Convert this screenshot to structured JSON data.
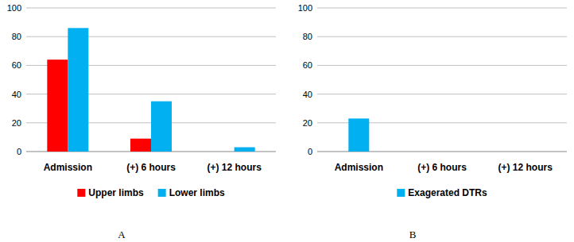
{
  "chart_data": [
    {
      "type": "bar",
      "title": "A",
      "categories": [
        "Admission",
        "(+) 6 hours",
        "(+) 12 hours"
      ],
      "series": [
        {
          "name": "Upper limbs",
          "color": "#ff0000",
          "values": [
            64,
            9,
            0
          ]
        },
        {
          "name": "Lower limbs",
          "color": "#00b0f0",
          "values": [
            86,
            35,
            3
          ]
        }
      ],
      "ylim": [
        0,
        100
      ],
      "yticks": [
        0,
        20,
        40,
        60,
        80,
        100
      ],
      "grid": true,
      "legend": "bottom"
    },
    {
      "type": "bar",
      "title": "B",
      "categories": [
        "Admission",
        "(+) 6 hours",
        "(+) 12 hours"
      ],
      "series": [
        {
          "name": "Exagerated DTRs",
          "color": "#00b0f0",
          "values": [
            23,
            0,
            0
          ]
        }
      ],
      "ylim": [
        0,
        100
      ],
      "yticks": [
        0,
        20,
        40,
        60,
        80,
        100
      ],
      "grid": true,
      "legend": "bottom"
    }
  ]
}
